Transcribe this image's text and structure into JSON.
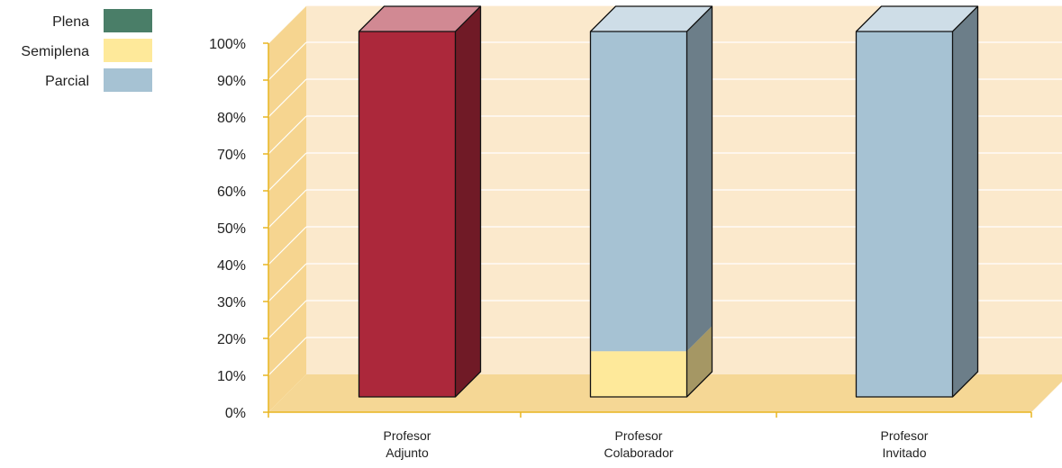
{
  "chart_data": {
    "type": "bar",
    "stacked": true,
    "three_d": true,
    "categories": [
      [
        "Profesor",
        "Adjunto"
      ],
      [
        "Profesor",
        "Colaborador"
      ],
      [
        "Profesor",
        "Invitado"
      ]
    ],
    "y_ticks": [
      "0%",
      "10%",
      "20%",
      "30%",
      "40%",
      "50%",
      "60%",
      "70%",
      "80%",
      "90%",
      "100%"
    ],
    "ylim": [
      0,
      100
    ],
    "grid": true,
    "legend_position": "top-left",
    "series": [
      {
        "name": "Plena",
        "color": "#4A7E68"
      },
      {
        "name": "Semiplena",
        "color": "#FEE99A"
      },
      {
        "name": "Parcial",
        "color": "#A6C2D3"
      }
    ],
    "bars": [
      {
        "category_index": 0,
        "stacks": [
          {
            "value": 100,
            "color": "#AC283B"
          }
        ]
      },
      {
        "category_index": 1,
        "stacks": [
          {
            "series": "Semiplena",
            "value": 12.5
          },
          {
            "series": "Parcial",
            "value": 87.5
          }
        ]
      },
      {
        "category_index": 2,
        "stacks": [
          {
            "series": "Parcial",
            "value": 100
          }
        ]
      }
    ],
    "colors": {
      "wall": "#FBE9CC",
      "floor": "#F5D795",
      "side_wall": "#F6D590",
      "grid": "#FFFFFF",
      "axis": "#E8B520"
    }
  }
}
